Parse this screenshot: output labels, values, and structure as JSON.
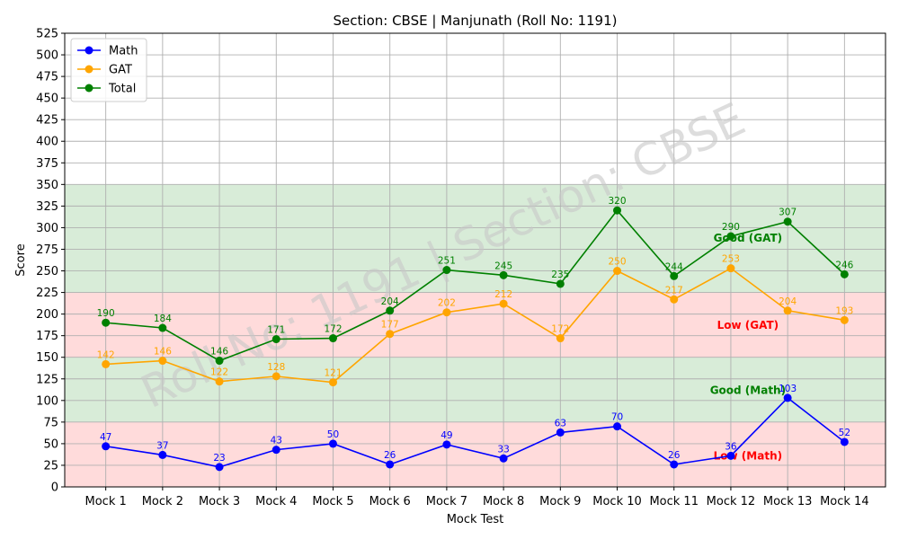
{
  "chart_data": {
    "type": "line",
    "title": "Section: CBSE | Manjunath (Roll No: 1191)",
    "xlabel": "Mock Test",
    "ylabel": "Score",
    "ylim": [
      0,
      525
    ],
    "ytick_step": 25,
    "grid": true,
    "legend_position": "top-left",
    "categories": [
      "Mock 1",
      "Mock 2",
      "Mock 3",
      "Mock 4",
      "Mock 5",
      "Mock 6",
      "Mock 7",
      "Mock 8",
      "Mock 9",
      "Mock 10",
      "Mock 11",
      "Mock 12",
      "Mock 13",
      "Mock 14"
    ],
    "series": [
      {
        "name": "Math",
        "color": "#0000ff",
        "values": [
          47,
          37,
          23,
          43,
          50,
          26,
          49,
          33,
          63,
          70,
          26,
          36,
          103,
          52
        ]
      },
      {
        "name": "GAT",
        "color": "#ffa500",
        "values": [
          142,
          146,
          122,
          128,
          121,
          177,
          202,
          212,
          172,
          250,
          217,
          253,
          204,
          193
        ]
      },
      {
        "name": "Total",
        "color": "#008000",
        "values": [
          190,
          184,
          146,
          171,
          172,
          204,
          251,
          245,
          235,
          320,
          244,
          290,
          307,
          246
        ]
      }
    ],
    "bands": [
      {
        "from": 0,
        "to": 75,
        "color": "#ff9999",
        "label": "Low (Math)",
        "label_color": "#ff0000",
        "label_y": 36
      },
      {
        "from": 75,
        "to": 150,
        "color": "#8fc98f",
        "label": "Good (Math)",
        "label_color": "#008000",
        "label_y": 112
      },
      {
        "from": 150,
        "to": 225,
        "color": "#ff9999",
        "label": "Low (GAT)",
        "label_color": "#ff0000",
        "label_y": 187
      },
      {
        "from": 225,
        "to": 350,
        "color": "#8fc98f",
        "label": "Good (GAT)",
        "label_color": "#008000",
        "label_y": 288
      }
    ],
    "watermark": "Roll No: 1191 | Section: CBSE"
  }
}
